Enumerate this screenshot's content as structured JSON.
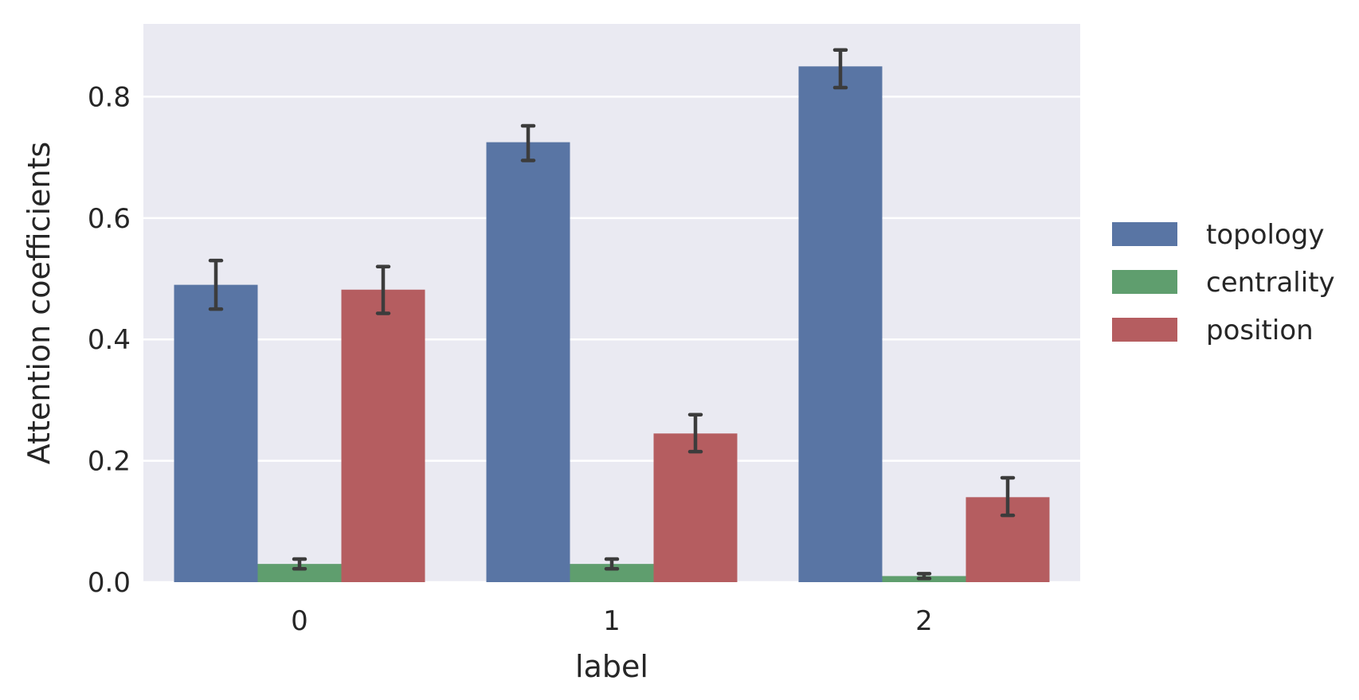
{
  "chart_data": {
    "type": "bar",
    "title": "",
    "xlabel": "label",
    "ylabel": "Attention coefficients",
    "categories": [
      "0",
      "1",
      "2"
    ],
    "ylim": [
      0,
      0.92
    ],
    "yticks": [
      0.0,
      0.2,
      0.4,
      0.6,
      0.8
    ],
    "ytick_labels": [
      "0.0",
      "0.2",
      "0.4",
      "0.6",
      "0.8"
    ],
    "grid": true,
    "legend_position": "right",
    "series": [
      {
        "name": "topology",
        "color": "#5975a4",
        "values": [
          0.49,
          0.725,
          0.85
        ],
        "err_low": [
          0.45,
          0.695,
          0.815
        ],
        "err_high": [
          0.53,
          0.752,
          0.877
        ]
      },
      {
        "name": "centrality",
        "color": "#5f9e6e",
        "values": [
          0.03,
          0.03,
          0.01
        ],
        "err_low": [
          0.022,
          0.022,
          0.006
        ],
        "err_high": [
          0.038,
          0.038,
          0.014
        ]
      },
      {
        "name": "position",
        "color": "#b55d60",
        "values": [
          0.482,
          0.245,
          0.14
        ],
        "err_low": [
          0.443,
          0.215,
          0.11
        ],
        "err_high": [
          0.52,
          0.276,
          0.172
        ]
      }
    ],
    "colors": {
      "plot_background": "#eaeaf2",
      "grid": "#ffffff",
      "error_bar": "#3c3c3c"
    }
  }
}
